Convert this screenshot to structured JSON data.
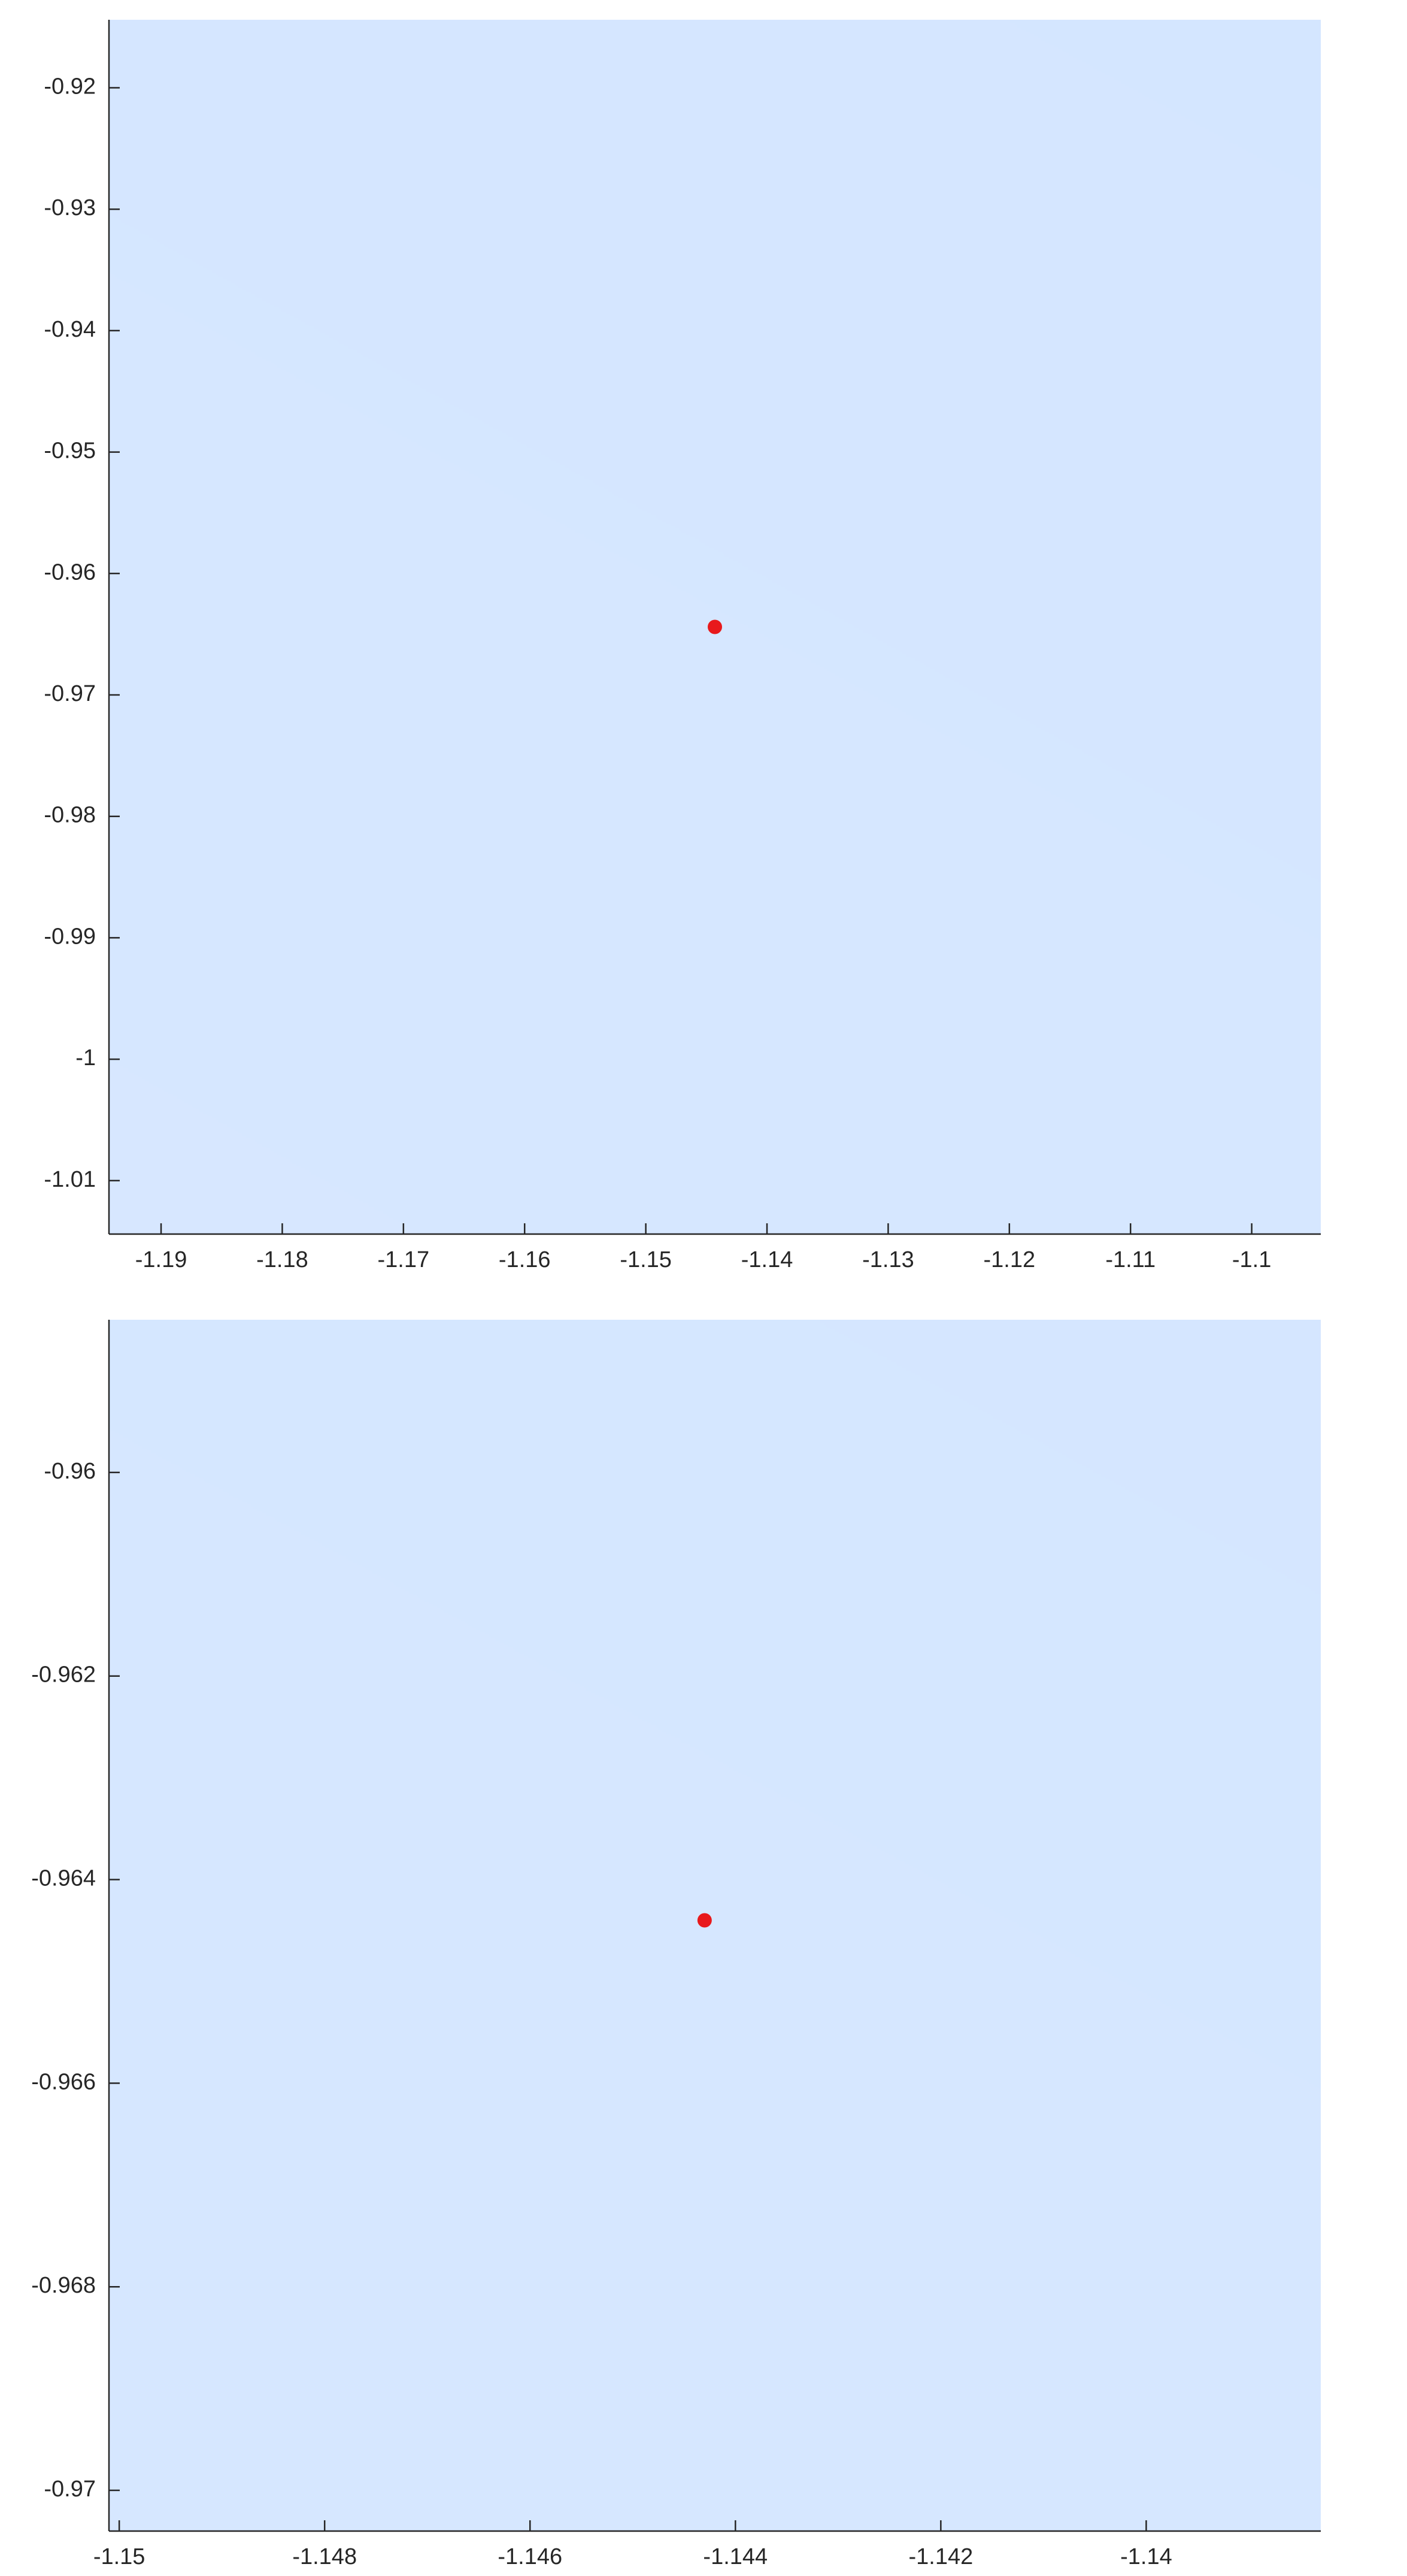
{
  "chart_data": [
    {
      "type": "fractal",
      "x": [
        -1.1443
      ],
      "values": [
        -0.9644
      ],
      "color": "#e8191c",
      "xlim": [
        -1.1943,
        -1.0943
      ],
      "ylim": [
        -1.0144,
        -0.9144
      ],
      "xticks": [
        -1.19,
        -1.18,
        -1.17,
        -1.16,
        -1.15,
        -1.14,
        -1.13,
        -1.12,
        -1.11,
        -1.1
      ],
      "yticks": [
        -0.92,
        -0.93,
        -0.94,
        -0.95,
        -0.96,
        -0.97,
        -0.98,
        -0.99,
        -1,
        -1.01
      ],
      "grid": false
    },
    {
      "type": "fractal",
      "x": [
        -1.1443
      ],
      "values": [
        -0.9644
      ],
      "color": "#e8191c",
      "xlim": [
        -1.1501,
        -1.1383
      ],
      "ylim": [
        -0.9704,
        -0.9585
      ],
      "xticks": [
        -1.15,
        -1.148,
        -1.146,
        -1.144,
        -1.142,
        -1.14
      ],
      "yticks": [
        -0.96,
        -0.962,
        -0.964,
        -0.966,
        -0.968,
        -0.97
      ],
      "grid": false
    }
  ]
}
